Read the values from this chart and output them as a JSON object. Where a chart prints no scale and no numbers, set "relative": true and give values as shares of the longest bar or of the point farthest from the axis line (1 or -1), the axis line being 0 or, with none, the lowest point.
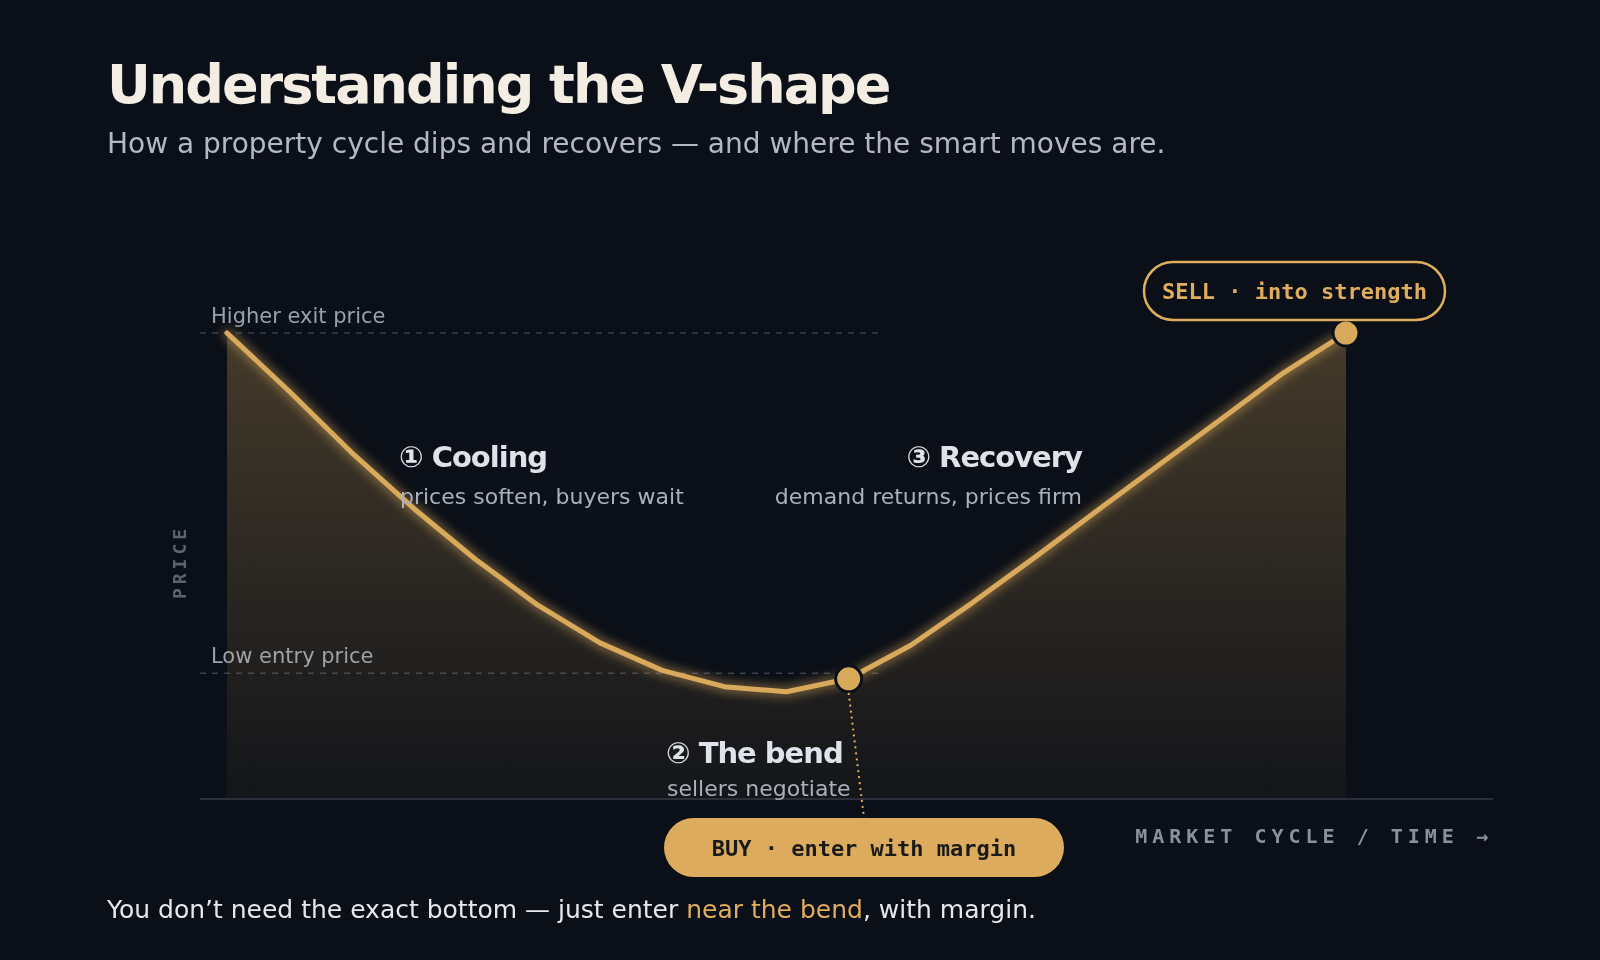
{
  "chart_data": {
    "type": "area",
    "title": "Understanding the V-shape",
    "subtitle": "How a property cycle dips and recovers — and where the smart moves are.",
    "xlabel": "MARKET CYCLE / TIME →",
    "ylabel": "PRICE",
    "relative": true,
    "categories": [
      null,
      null,
      null,
      null,
      null,
      null,
      null,
      null,
      null,
      null,
      null,
      null,
      null,
      null,
      null,
      null,
      null,
      null,
      null
    ],
    "series": [
      {
        "color": "#d9a95b",
        "values": [
          1.0,
          0.875,
          0.744,
          0.624,
          0.514,
          0.416,
          0.335,
          0.276,
          0.241,
          0.23,
          0.258,
          0.33,
          0.422,
          0.519,
          0.619,
          0.718,
          0.816,
          0.915,
          1.0
        ]
      }
    ],
    "ref_lines": [
      {
        "axis": "y",
        "value": 1.0,
        "label": "Higher exit price",
        "line_style": "dashed",
        "color": "#3a3f4b"
      },
      {
        "axis": "y",
        "value": 0.27,
        "label": "Low entry price",
        "line_style": "dashed",
        "color": "#3a3f4b"
      }
    ],
    "annotations": [
      "① Cooling",
      "prices soften, buyers wait",
      "② The bend",
      "sellers negotiate",
      "③ Recovery",
      "demand returns, prices firm",
      "SELL · into strength",
      "BUY · enter with margin",
      "You don’t need the exact bottom — just enter ",
      "near the bend",
      ", with margin."
    ]
  }
}
